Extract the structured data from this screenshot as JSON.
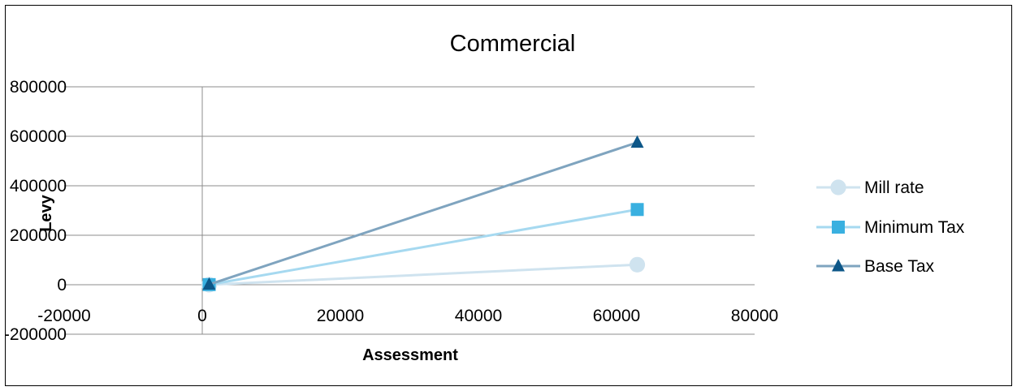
{
  "chart_data": {
    "type": "line",
    "title": "Commercial",
    "xlabel": "Assessment",
    "ylabel": "Levy",
    "xlim": [
      -20000,
      80000
    ],
    "ylim": [
      -200000,
      800000
    ],
    "x_ticks": [
      "-20000",
      "0",
      "20000",
      "40000",
      "60000",
      "80000"
    ],
    "y_ticks": [
      "800000",
      "600000",
      "400000",
      "200000",
      "0",
      "-200000"
    ],
    "grid": "horizontal",
    "legend_position": "right",
    "series": [
      {
        "name": "Mill rate",
        "color": "#cfe3ef",
        "marker": "circle",
        "points": [
          [
            1000,
            0
          ],
          [
            63000,
            81000
          ]
        ]
      },
      {
        "name": "Minimum Tax",
        "color": "#39b0e0",
        "line_color": "#a6d9f0",
        "marker": "square",
        "points": [
          [
            1000,
            500
          ],
          [
            63000,
            304000
          ]
        ]
      },
      {
        "name": "Base Tax",
        "color": "#0d5788",
        "line_color": "#7fa4bf",
        "marker": "triangle",
        "points": [
          [
            1000,
            1000
          ],
          [
            63000,
            575000
          ]
        ]
      }
    ]
  }
}
